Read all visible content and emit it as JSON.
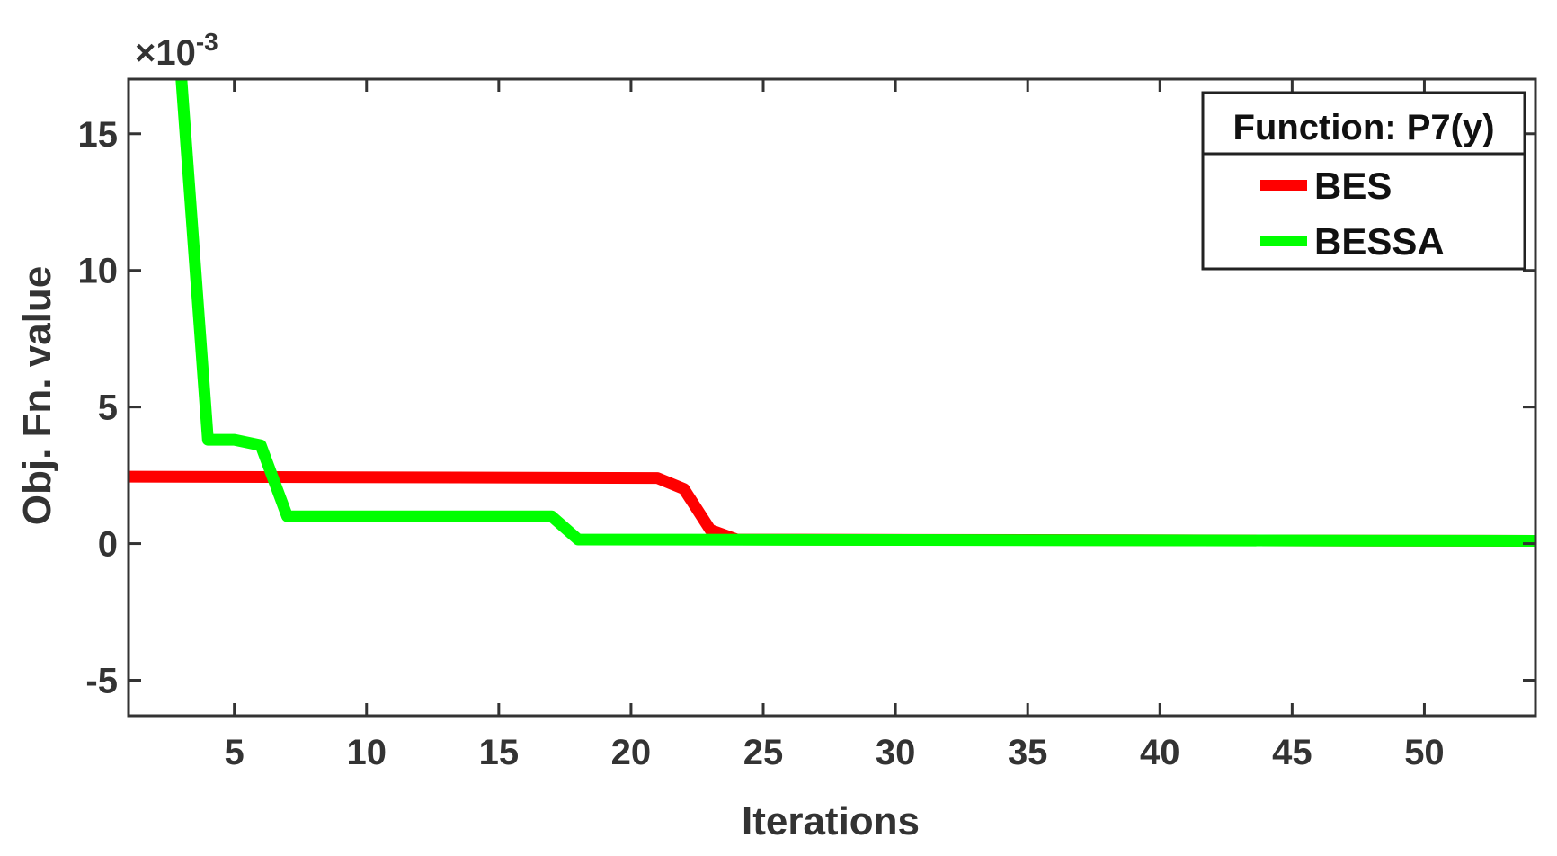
{
  "chart_data": {
    "type": "line",
    "title": "",
    "xlabel": "Iterations",
    "ylabel": "Obj. Fn. value",
    "y_exponent_label": "×10",
    "y_exponent_power": "-3",
    "xlim": [
      1,
      54.2
    ],
    "ylim": [
      -6.3,
      17.0
    ],
    "x_ticks": [
      5,
      10,
      15,
      20,
      25,
      30,
      35,
      40,
      45,
      50
    ],
    "y_ticks": [
      -5,
      0,
      5,
      10,
      15
    ],
    "x_tick_labels": [
      "5",
      "10",
      "15",
      "20",
      "25",
      "30",
      "35",
      "40",
      "45",
      "50"
    ],
    "y_tick_labels": [
      "-5",
      "0",
      "5",
      "10",
      "15"
    ],
    "grid": false,
    "legend_placement": "top-right",
    "legend_title": "Function: P7(y)",
    "series": [
      {
        "name": "BES",
        "color": "#ff0000",
        "x": [
          1,
          21,
          22,
          23,
          24,
          54.2
        ],
        "y": [
          2.45,
          2.4,
          2.0,
          0.5,
          0.15,
          0.1
        ]
      },
      {
        "name": "BESSA",
        "color": "#00ff00",
        "x": [
          3,
          4,
          5,
          6,
          7,
          17,
          18,
          54.2
        ],
        "y": [
          17.0,
          3.8,
          3.8,
          3.6,
          1.0,
          1.0,
          0.15,
          0.1
        ]
      }
    ]
  }
}
